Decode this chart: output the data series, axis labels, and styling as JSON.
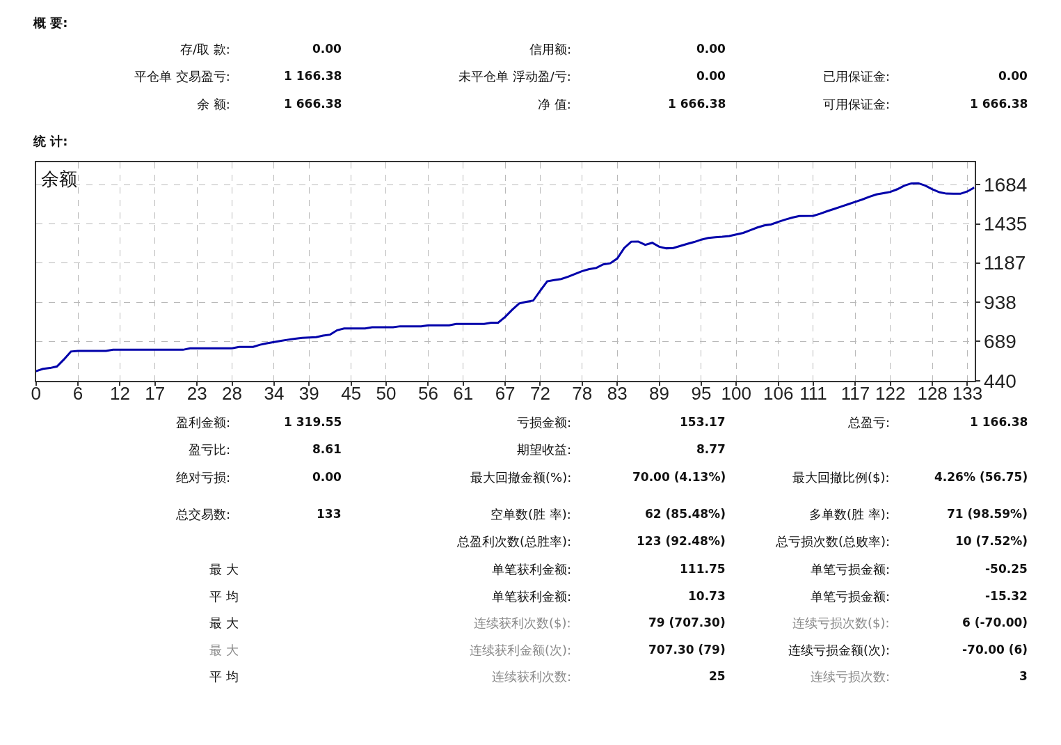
{
  "chart_data": [
    {
      "type": "other",
      "title": "概 要:",
      "annotations": [
        "存/取 款:",
        "0.00",
        "信用额:",
        "0.00",
        "平仓单 交易盈亏:",
        "1 166.38",
        "未平仓单 浮动盈/亏:",
        "0.00",
        "已用保证金:",
        "0.00",
        "余 额:",
        "1 666.38",
        "净 值:",
        "1 666.38",
        "可用保证金:",
        "1 666.38"
      ]
    },
    {
      "type": "line",
      "title": "余额",
      "color": "#0000aa",
      "marker": "none",
      "line_style": "solid",
      "grid": true,
      "x": [
        0,
        1,
        2,
        3,
        4,
        5,
        6,
        10,
        11,
        21,
        22,
        28,
        29,
        31,
        32,
        33,
        34,
        35,
        36,
        37,
        38,
        40,
        41,
        42,
        43,
        44,
        47,
        48,
        51,
        52,
        55,
        56,
        59,
        60,
        64,
        65,
        66,
        67,
        68,
        69,
        70,
        71,
        72,
        73,
        74,
        75,
        76,
        77,
        78,
        79,
        80,
        81,
        82,
        83,
        84,
        85,
        86,
        87,
        88,
        89,
        90,
        91,
        92,
        93,
        94,
        95,
        96,
        97,
        98,
        99,
        100,
        101,
        102,
        103,
        104,
        105,
        106,
        107,
        108,
        109,
        111,
        112,
        113,
        114,
        115,
        116,
        117,
        118,
        119,
        120,
        121,
        122,
        123,
        124,
        125,
        126,
        127,
        128,
        129,
        130,
        131,
        132,
        133,
        134
      ],
      "values": [
        500,
        515,
        520,
        530,
        575,
        625,
        629,
        629,
        636,
        636,
        645,
        645,
        654,
        654,
        668,
        677,
        685,
        693,
        700,
        706,
        712,
        716,
        726,
        732,
        760,
        771,
        771,
        779,
        779,
        785,
        785,
        791,
        791,
        800,
        800,
        808,
        808,
        845,
        890,
        930,
        940,
        948,
        1010,
        1070,
        1078,
        1085,
        1100,
        1118,
        1135,
        1148,
        1155,
        1178,
        1185,
        1215,
        1282,
        1322,
        1323,
        1302,
        1315,
        1290,
        1280,
        1282,
        1295,
        1308,
        1320,
        1335,
        1346,
        1350,
        1353,
        1358,
        1368,
        1378,
        1395,
        1412,
        1425,
        1432,
        1448,
        1462,
        1475,
        1485,
        1486,
        1500,
        1516,
        1530,
        1545,
        1560,
        1575,
        1590,
        1607,
        1622,
        1630,
        1638,
        1655,
        1678,
        1692,
        1693,
        1678,
        1655,
        1636,
        1627,
        1626,
        1626,
        1641,
        1666
      ],
      "xlim": [
        0,
        134
      ],
      "xticks": [
        0,
        6,
        12,
        17,
        23,
        28,
        34,
        39,
        45,
        50,
        56,
        61,
        67,
        72,
        78,
        83,
        89,
        95,
        100,
        106,
        111,
        117,
        122,
        128,
        133
      ],
      "ylim": [
        440,
        1825
      ],
      "yticks": [
        440,
        689,
        938,
        1187,
        1435,
        1684
      ]
    },
    {
      "type": "other",
      "title": "统 计:",
      "annotations": [
        "盈利金额:",
        "1 319.55",
        "亏损金额:",
        "153.17",
        "总盈亏:",
        "1 166.38",
        "盈亏比:",
        "8.61",
        "期望收益:",
        "8.77",
        "绝对亏损:",
        "0.00",
        "最大回撤金额(%):",
        "70.00 (4.13%)",
        "最大回撤比例($):",
        "4.26% (56.75)",
        "总交易数:",
        "133",
        "空单数(胜 率):",
        "62 (85.48%)",
        "多单数(胜 率):",
        "71 (98.59%)",
        "总盈利次数(总胜率):",
        "123 (92.48%)",
        "总亏损次数(总败率):",
        "10 (7.52%)",
        "最 大",
        "单笔获利金额:",
        "111.75",
        "单笔亏损金额:",
        "-50.25",
        "平 均",
        "单笔获利金额:",
        "10.73",
        "单笔亏损金额:",
        "-15.32",
        "最 大",
        "连续获利次数($):",
        "79 (707.30)",
        "连续亏损次数($):",
        "6 (-70.00)",
        "最 大",
        "连续获利金额(次):",
        "707.30 (79)",
        "连续亏损金额(次):",
        "-70.00 (6)",
        "平 均",
        "连续获利次数:",
        "25",
        "连续亏损次数:",
        "3"
      ]
    }
  ]
}
